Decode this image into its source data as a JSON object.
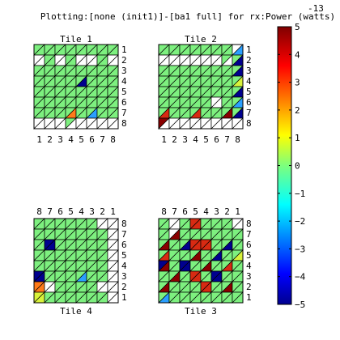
{
  "title": "Plotting:[none (init1)]-[ba1 full] for rx:Power (watts)",
  "chart_data": {
    "type": "heatmap",
    "title": "Plotting:[none (init1)]-[ba1 full] for rx:Power (watts)",
    "colorbar": {
      "exponent_label": "-13",
      "range": [
        -5,
        5
      ],
      "ticks": [
        "5",
        "4",
        "3",
        "2",
        "1",
        "0",
        "−1",
        "−2",
        "−3",
        "−4",
        "−5"
      ]
    },
    "legend_codes": {
      "n": "no value (white)",
      "g": "0",
      "b": "-5",
      "c": "-2",
      "o": "3",
      "y": "1",
      "r": "5",
      "d": "4.5"
    },
    "tiles": [
      {
        "title": "Tile 1",
        "col_labels": [
          "1",
          "2",
          "3",
          "4",
          "5",
          "6",
          "7",
          "8"
        ],
        "row_labels": [
          "1",
          "2",
          "3",
          "4",
          "5",
          "6",
          "7",
          "8"
        ],
        "cells": [
          [
            "gg",
            "gg",
            "gg",
            "gg",
            "gg",
            "gg",
            "gg",
            "gg"
          ],
          [
            "nn",
            "gg",
            "nn",
            "gg",
            "nn",
            "nn",
            "gg",
            "nn"
          ],
          [
            "gg",
            "gg",
            "gg",
            "gg",
            "gg",
            "gg",
            "gg",
            "gg"
          ],
          [
            "gg",
            "gg",
            "gg",
            "gg",
            "gb",
            "gg",
            "gg",
            "gg"
          ],
          [
            "gg",
            "gg",
            "gg",
            "gg",
            "gg",
            "gg",
            "gg",
            "gg"
          ],
          [
            "gg",
            "gg",
            "gg",
            "gg",
            "gg",
            "gg",
            "gg",
            "gg"
          ],
          [
            "gg",
            "gg",
            "gg",
            "go",
            "gg",
            "gc",
            "gg",
            "gg"
          ],
          [
            "nn",
            "nn",
            "nn",
            "gn",
            "nn",
            "nn",
            "nn",
            "nn"
          ]
        ]
      },
      {
        "title": "Tile 2",
        "col_labels": [
          "1",
          "2",
          "3",
          "4",
          "5",
          "6",
          "7",
          "8"
        ],
        "row_labels": [
          "1",
          "2",
          "3",
          "4",
          "5",
          "6",
          "7",
          "8"
        ],
        "cells": [
          [
            "gg",
            "gg",
            "gg",
            "gg",
            "gg",
            "gg",
            "gg",
            "nc"
          ],
          [
            "nn",
            "nn",
            "nn",
            "nn",
            "nn",
            "nn",
            "gn",
            "gb"
          ],
          [
            "gg",
            "gg",
            "gg",
            "gg",
            "gg",
            "gg",
            "gg",
            "gb"
          ],
          [
            "gg",
            "gg",
            "gg",
            "gg",
            "gg",
            "gg",
            "gg",
            "gy"
          ],
          [
            "gg",
            "gg",
            "gg",
            "gg",
            "gg",
            "gg",
            "gg",
            "gb"
          ],
          [
            "gg",
            "gg",
            "gg",
            "gg",
            "gg",
            "nn",
            "gg",
            "gc"
          ],
          [
            "gr",
            "gg",
            "gg",
            "gr",
            "gg",
            "gg",
            "gd",
            "gb"
          ],
          [
            "dn",
            "nn",
            "nn",
            "nn",
            "nn",
            "nn",
            "nn",
            "nn"
          ]
        ]
      },
      {
        "title": "Tile 4",
        "col_labels": [
          "8",
          "7",
          "6",
          "5",
          "4",
          "3",
          "2",
          "1"
        ],
        "row_labels": [
          "8",
          "7",
          "6",
          "5",
          "4",
          "3",
          "2",
          "1"
        ],
        "cells": [
          [
            "gg",
            "gg",
            "gg",
            "gg",
            "gg",
            "gg",
            "nn",
            "nn"
          ],
          [
            "gg",
            "gg",
            "gg",
            "gg",
            "gg",
            "gg",
            "gg",
            "nn"
          ],
          [
            "gg",
            "bb",
            "gg",
            "gg",
            "gg",
            "gg",
            "gg",
            "nn"
          ],
          [
            "gg",
            "gg",
            "gg",
            "gg",
            "gg",
            "gg",
            "gg",
            "nn"
          ],
          [
            "gg",
            "gg",
            "gg",
            "gg",
            "gg",
            "gg",
            "gg",
            "nn"
          ],
          [
            "bb",
            "gg",
            "gg",
            "gg",
            "gc",
            "gg",
            "gg",
            "nn"
          ],
          [
            "oo",
            "nn",
            "gg",
            "gg",
            "gg",
            "gg",
            "nn",
            "nn"
          ],
          [
            "yy",
            "gg",
            "gg",
            "gg",
            "gg",
            "gg",
            "gg",
            "nn"
          ]
        ]
      },
      {
        "title": "Tile 3",
        "col_labels": [
          "8",
          "7",
          "6",
          "5",
          "4",
          "3",
          "2",
          "1"
        ],
        "row_labels": [
          "8",
          "7",
          "6",
          "5",
          "4",
          "3",
          "2",
          "1"
        ],
        "cells": [
          [
            "gg",
            "nn",
            "gg",
            "rr",
            "gg",
            "gg",
            "gg",
            "nn"
          ],
          [
            "gg",
            "nd",
            "gg",
            "gg",
            "gg",
            "gg",
            "gg",
            "gg"
          ],
          [
            "gd",
            "gg",
            "gb",
            "rr",
            "rr",
            "gg",
            "gb",
            "gg"
          ],
          [
            "gr",
            "gg",
            "gg",
            "gd",
            "gg",
            "gb",
            "gg",
            "gy"
          ],
          [
            "bd",
            "gg",
            "bb",
            "gg",
            "gd",
            "gg",
            "gr",
            "gg"
          ],
          [
            "gg",
            "gd",
            "gg",
            "rr",
            "gg",
            "bb",
            "gg",
            "gg"
          ],
          [
            "gd",
            "gg",
            "gg",
            "gg",
            "rr",
            "gg",
            "gd",
            "gg"
          ],
          [
            "gc",
            "gg",
            "gg",
            "gg",
            "gg",
            "gg",
            "gg",
            "gg"
          ]
        ]
      }
    ]
  },
  "colors": {
    "n": "#ffffff",
    "g": "#7df07f",
    "b": "#00008f",
    "c": "#2a9fff",
    "o": "#ff7a1a",
    "y": "#d8f23a",
    "r": "#d82a12",
    "d": "#8a0000",
    "grid": "#000000"
  }
}
